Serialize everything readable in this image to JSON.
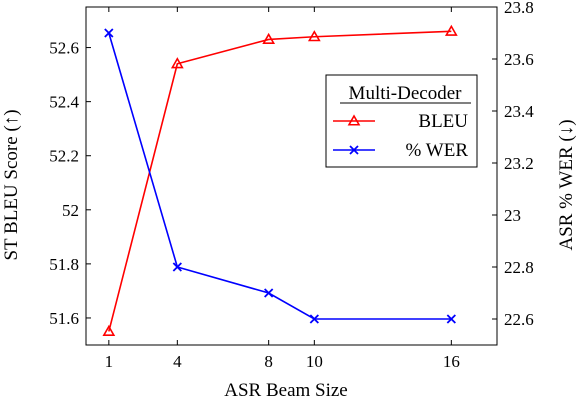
{
  "chart_data": {
    "type": "line",
    "xlabel": "ASR Beam Size",
    "ylabel_left": "ST BLEU Score (↑)",
    "ylabel_right": "ASR % WER (↓)",
    "x": [
      1,
      4,
      8,
      10,
      16
    ],
    "xlim": [
      0,
      18
    ],
    "ylim_left": [
      51.5,
      52.75
    ],
    "ylim_right": [
      22.5,
      23.8
    ],
    "yticks_left": [
      51.6,
      51.8,
      52,
      52.2,
      52.4,
      52.6
    ],
    "yticks_right": [
      22.6,
      22.8,
      23,
      23.2,
      23.4,
      23.6,
      23.8
    ],
    "legend": {
      "title": "Multi-Decoder",
      "position": "right"
    },
    "series": [
      {
        "name": "BLEU",
        "axis": "left",
        "color": "#ff0000",
        "marker": "triangle",
        "values": [
          51.55,
          52.54,
          52.63,
          52.64,
          52.66
        ]
      },
      {
        "name": "% WER",
        "axis": "right",
        "color": "#0000ff",
        "marker": "x",
        "values": [
          23.7,
          22.8,
          22.7,
          22.6,
          22.6
        ]
      }
    ]
  }
}
